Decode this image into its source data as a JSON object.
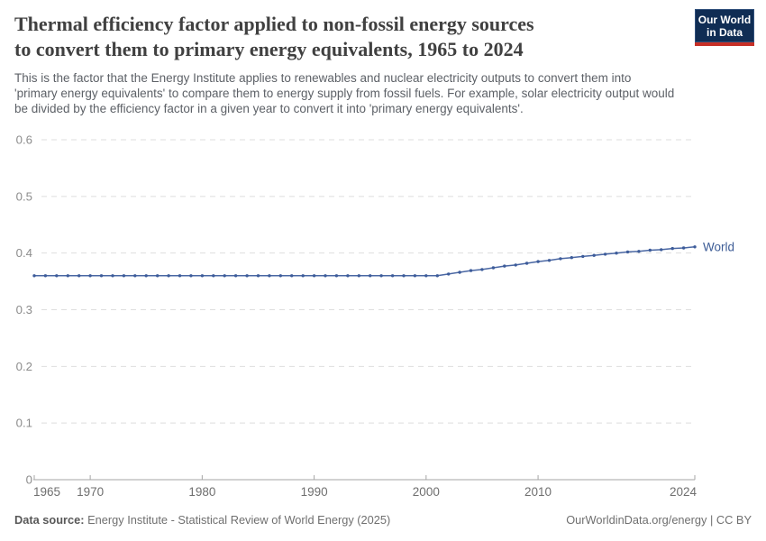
{
  "logo": {
    "line1": "Our World",
    "line2": "in Data",
    "bg_color": "#102d54",
    "bar_color": "#c62f26"
  },
  "header": {
    "title_lines": [
      "Thermal efficiency factor applied to non-fossil energy sources",
      "to convert them to primary energy equivalents, 1965 to 2024"
    ],
    "subtitle_lines": [
      "This is the factor that the Energy Institute applies to renewables and nuclear electricity outputs to convert them into",
      "'primary energy equivalents' to compare them to energy supply from fossil fuels. For example, solar electricity output would",
      "be divided by the efficiency factor in a given year to convert it into 'primary energy equivalents'."
    ]
  },
  "footer": {
    "data_source_label": "Data source:",
    "data_source_value": "Energy Institute - Statistical Review of World Energy (2025)",
    "attribution": "OurWorldinData.org/energy | CC BY"
  },
  "chart_data": {
    "type": "line",
    "title": "Thermal efficiency factor applied to non-fossil energy sources to convert them to primary energy equivalents, 1965 to 2024",
    "xlabel": "",
    "ylabel": "",
    "xlim": [
      1965,
      2024
    ],
    "ylim": [
      0,
      0.6
    ],
    "xticks": [
      1965,
      1970,
      1980,
      1990,
      2000,
      2010,
      2024
    ],
    "xtick_labels": [
      "1965",
      "1970",
      "1980",
      "1990",
      "2000",
      "2010",
      "2024"
    ],
    "yticks": [
      0,
      0.1,
      0.2,
      0.3,
      0.4,
      0.5,
      0.6
    ],
    "ytick_labels": [
      "0",
      "0.1",
      "0.2",
      "0.3",
      "0.4",
      "0.5",
      "0.6"
    ],
    "grid": "horizontal-dashed",
    "legend_position": "end-of-line",
    "grid_color": "#dedede",
    "axis_color": "#a5a5a5",
    "ytick_label_color": "#8c8c8c",
    "xtick_label_color": "#6f6f6f",
    "series": [
      {
        "name": "World",
        "color": "#4a67a3",
        "marker_color": "#3d5c9a",
        "label_color": "#3d5c96",
        "years": [
          1965,
          1966,
          1967,
          1968,
          1969,
          1970,
          1971,
          1972,
          1973,
          1974,
          1975,
          1976,
          1977,
          1978,
          1979,
          1980,
          1981,
          1982,
          1983,
          1984,
          1985,
          1986,
          1987,
          1988,
          1989,
          1990,
          1991,
          1992,
          1993,
          1994,
          1995,
          1996,
          1997,
          1998,
          1999,
          2000,
          2001,
          2002,
          2003,
          2004,
          2005,
          2006,
          2007,
          2008,
          2009,
          2010,
          2011,
          2012,
          2013,
          2014,
          2015,
          2016,
          2017,
          2018,
          2019,
          2020,
          2021,
          2022,
          2023,
          2024
        ],
        "values": [
          0.36,
          0.36,
          0.36,
          0.36,
          0.36,
          0.36,
          0.36,
          0.36,
          0.36,
          0.36,
          0.36,
          0.36,
          0.36,
          0.36,
          0.36,
          0.36,
          0.36,
          0.36,
          0.36,
          0.36,
          0.36,
          0.36,
          0.36,
          0.36,
          0.36,
          0.36,
          0.36,
          0.36,
          0.36,
          0.36,
          0.36,
          0.36,
          0.36,
          0.36,
          0.36,
          0.36,
          0.36,
          0.363,
          0.366,
          0.369,
          0.371,
          0.374,
          0.377,
          0.379,
          0.382,
          0.385,
          0.387,
          0.39,
          0.392,
          0.394,
          0.396,
          0.398,
          0.4,
          0.402,
          0.403,
          0.405,
          0.406,
          0.408,
          0.409,
          0.411
        ]
      }
    ]
  }
}
